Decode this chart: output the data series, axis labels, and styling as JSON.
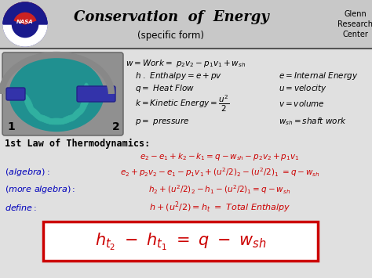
{
  "bg_color": "#d8d8d8",
  "header_bg": "#c8c8c8",
  "title": "Conservation  of  Energy",
  "subtitle": "(specific form)",
  "glenn_text": "Glenn\nResearch\nCenter",
  "title_color": "#000000",
  "red_color": "#cc0000",
  "blue_color": "#0000bb",
  "black_color": "#000000",
  "figsize": [
    4.74,
    3.55
  ],
  "dpi": 100
}
